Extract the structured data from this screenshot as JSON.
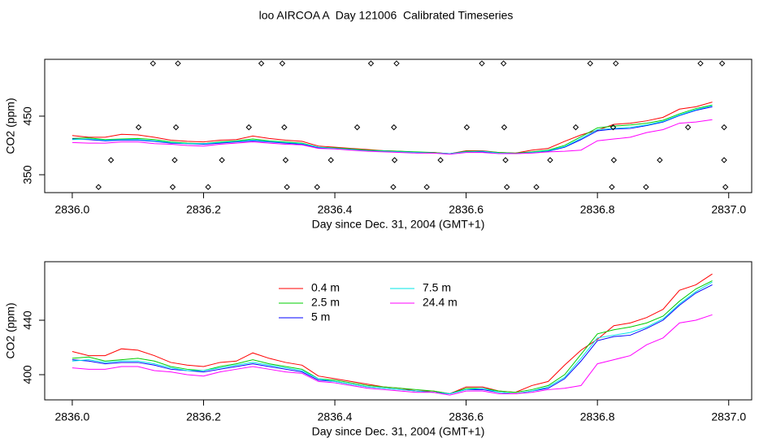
{
  "chart_data": [
    {
      "type": "line",
      "title": "loo AIRCOA A  Day 121006  Calibrated Timeseries",
      "x_label": "Day since Dec. 31, 2004 (GMT+1)",
      "y_label": "CO2 (ppm)",
      "x": [
        2836,
        2836.025,
        2836.05,
        2836.075,
        2836.1,
        2836.125,
        2836.15,
        2836.175,
        2836.2,
        2836.225,
        2836.25,
        2836.275,
        2836.3,
        2836.325,
        2836.35,
        2836.375,
        2836.4,
        2836.425,
        2836.45,
        2836.475,
        2836.5,
        2836.525,
        2836.55,
        2836.575,
        2836.6,
        2836.625,
        2836.65,
        2836.675,
        2836.7,
        2836.725,
        2836.75,
        2836.775,
        2836.8,
        2836.825,
        2836.85,
        2836.875,
        2836.9,
        2836.925,
        2836.95,
        2836.975
      ],
      "series": [
        {
          "color": "#ff0000",
          "values": [
            417,
            414,
            414,
            419,
            418,
            414,
            409,
            407,
            406,
            409,
            410,
            416,
            412,
            409,
            407,
            399,
            397,
            395,
            393,
            391,
            390,
            388,
            388,
            386,
            391,
            391,
            388,
            387,
            392,
            395,
            407,
            418,
            426,
            436,
            438,
            442,
            448,
            462,
            466,
            474
          ]
        },
        {
          "color": "#00cd00",
          "values": [
            412,
            413,
            410,
            411,
            412,
            410,
            406,
            404,
            403,
            406,
            408,
            411,
            408,
            406,
            404,
            397,
            396,
            394,
            392,
            391,
            390,
            389,
            388,
            386,
            390,
            390,
            388,
            387,
            389,
            392,
            400,
            415,
            430,
            433,
            435,
            438,
            443,
            454,
            463,
            469
          ]
        },
        {
          "color": "#0000ff",
          "values": [
            411,
            410,
            408,
            409,
            409,
            407,
            404,
            403,
            402,
            404,
            406,
            408,
            406,
            404,
            402,
            396,
            395,
            393,
            391,
            390,
            389,
            388,
            387,
            386,
            389,
            389,
            387,
            386,
            388,
            390,
            397,
            410,
            425,
            428,
            429,
            434,
            440,
            451,
            460,
            466
          ]
        },
        {
          "color": "#00e5e5",
          "values": [
            410,
            411,
            409,
            410,
            410,
            408,
            405,
            403,
            403,
            405,
            407,
            409,
            407,
            405,
            403,
            397,
            395,
            393,
            391,
            390,
            389,
            388,
            387,
            386,
            389,
            390,
            387,
            386,
            388,
            391,
            398,
            412,
            427,
            429,
            431,
            435,
            441,
            452,
            461,
            468
          ]
        },
        {
          "color": "#ff00ff",
          "values": [
            405,
            404,
            404,
            406,
            406,
            403,
            402,
            400,
            399,
            402,
            404,
            406,
            404,
            402,
            401,
            395,
            394,
            392,
            390,
            389,
            388,
            387,
            387,
            385,
            388,
            388,
            386,
            386,
            387,
            389,
            390,
            392,
            408,
            411,
            414,
            422,
            427,
            438,
            440,
            444
          ]
        }
      ],
      "markers": {
        "x": [
          2836.123,
          2836.161,
          2836.288,
          2836.32,
          2836.455,
          2836.494,
          2836.624,
          2836.657,
          2836.789,
          2836.828,
          2836.957,
          2836.99,
          2836.101,
          2836.158,
          2836.269,
          2836.323,
          2836.434,
          2836.49,
          2836.601,
          2836.658,
          2836.767,
          2836.824,
          2836.938,
          2836.993,
          2836.059,
          2836.156,
          2836.228,
          2836.325,
          2836.394,
          2836.491,
          2836.561,
          2836.66,
          2836.728,
          2836.825,
          2836.895,
          2836.993,
          2836.04,
          2836.153,
          2836.207,
          2836.327,
          2836.373,
          2836.489,
          2836.54,
          2836.662,
          2836.707,
          2836.822,
          2836.874,
          2836.995
        ],
        "y": [
          540,
          540,
          540,
          540,
          540,
          540,
          540,
          540,
          540,
          540,
          540,
          540,
          431,
          431,
          431,
          431,
          431,
          431,
          431,
          431,
          431,
          431,
          431,
          431,
          375,
          375,
          375,
          375,
          375,
          375,
          375,
          375,
          375,
          375,
          375,
          375,
          329,
          329,
          329,
          329,
          329,
          329,
          329,
          329,
          329,
          329,
          329,
          329
        ]
      },
      "xlim": [
        2835.958,
        2837.035
      ],
      "ylim": [
        319.5,
        547
      ],
      "xticks": [
        {
          "value": 2836,
          "label": "2836.0"
        },
        {
          "value": 2836.2,
          "label": "2836.2"
        },
        {
          "value": 2836.4,
          "label": "2836.4"
        },
        {
          "value": 2836.6,
          "label": "2836.6"
        },
        {
          "value": 2836.8,
          "label": "2836.8"
        },
        {
          "value": 2837,
          "label": "2837.0"
        }
      ],
      "yticks": [
        350,
        450
      ]
    },
    {
      "type": "line",
      "x_label": "Day since Dec. 31, 2004 (GMT+1)",
      "y_label": "CO2 (ppm)",
      "legend": "top",
      "x": [
        2836,
        2836.025,
        2836.05,
        2836.075,
        2836.1,
        2836.125,
        2836.15,
        2836.175,
        2836.2,
        2836.225,
        2836.25,
        2836.275,
        2836.3,
        2836.325,
        2836.35,
        2836.375,
        2836.4,
        2836.425,
        2836.45,
        2836.475,
        2836.5,
        2836.525,
        2836.55,
        2836.575,
        2836.6,
        2836.625,
        2836.65,
        2836.675,
        2836.7,
        2836.725,
        2836.75,
        2836.775,
        2836.8,
        2836.825,
        2836.85,
        2836.875,
        2836.9,
        2836.925,
        2836.95,
        2836.975
      ],
      "series": [
        {
          "name": "0.4 m",
          "color": "#ff0000",
          "values": [
            417,
            414,
            414,
            419,
            418,
            414,
            409,
            407,
            406,
            409,
            410,
            416,
            412,
            409,
            407,
            399,
            397,
            395,
            393,
            391,
            390,
            388,
            388,
            386,
            391,
            391,
            388,
            387,
            392,
            395,
            407,
            418,
            426,
            436,
            438,
            442,
            448,
            462,
            466,
            474
          ]
        },
        {
          "name": "2.5 m",
          "color": "#00cd00",
          "values": [
            412,
            413,
            410,
            411,
            412,
            410,
            406,
            404,
            403,
            406,
            408,
            411,
            408,
            406,
            404,
            397,
            396,
            394,
            392,
            391,
            390,
            389,
            388,
            386,
            390,
            390,
            388,
            387,
            389,
            392,
            400,
            415,
            430,
            433,
            435,
            438,
            443,
            454,
            463,
            469
          ]
        },
        {
          "name": "5 m",
          "color": "#0000ff",
          "values": [
            411,
            410,
            408,
            409,
            409,
            407,
            404,
            403,
            402,
            404,
            406,
            408,
            406,
            404,
            402,
            396,
            395,
            393,
            391,
            390,
            389,
            388,
            387,
            386,
            389,
            389,
            387,
            386,
            388,
            390,
            397,
            410,
            425,
            428,
            429,
            434,
            440,
            451,
            460,
            466
          ]
        },
        {
          "name": "7.5 m",
          "color": "#00e5e5",
          "values": [
            410,
            411,
            409,
            410,
            410,
            408,
            405,
            403,
            403,
            405,
            407,
            409,
            407,
            405,
            403,
            397,
            395,
            393,
            391,
            390,
            389,
            388,
            387,
            386,
            389,
            390,
            387,
            386,
            388,
            391,
            398,
            412,
            427,
            429,
            431,
            435,
            441,
            452,
            461,
            468
          ]
        },
        {
          "name": "24.4 m",
          "color": "#ff00ff",
          "values": [
            405,
            404,
            404,
            406,
            406,
            403,
            402,
            400,
            399,
            402,
            404,
            406,
            404,
            402,
            401,
            395,
            394,
            392,
            390,
            389,
            388,
            387,
            387,
            385,
            388,
            388,
            386,
            386,
            387,
            389,
            390,
            392,
            408,
            411,
            414,
            422,
            427,
            438,
            440,
            444
          ]
        }
      ],
      "xlim": [
        2835.958,
        2837.035
      ],
      "ylim": [
        381.5,
        483
      ],
      "xticks": [
        {
          "value": 2836,
          "label": "2836.0"
        },
        {
          "value": 2836.2,
          "label": "2836.2"
        },
        {
          "value": 2836.4,
          "label": "2836.4"
        },
        {
          "value": 2836.6,
          "label": "2836.6"
        },
        {
          "value": 2836.8,
          "label": "2836.8"
        },
        {
          "value": 2837,
          "label": "2837.0"
        }
      ],
      "yticks": [
        400,
        440
      ]
    }
  ]
}
